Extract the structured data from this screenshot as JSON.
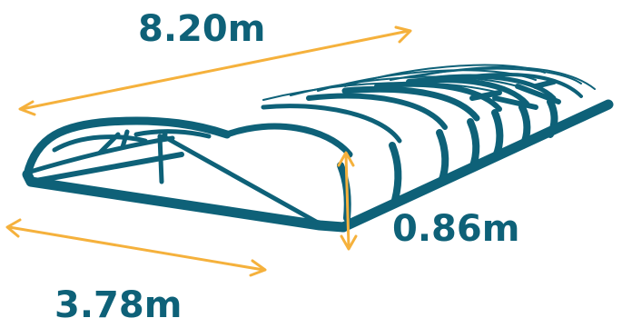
{
  "dimensions": {
    "length": "8.20m",
    "width": "3.78m",
    "height": "0.86m"
  },
  "colors": {
    "frame": "#0e6178",
    "arrow": "#f5b13c",
    "panel": "#0e6178",
    "background": "#ffffff"
  }
}
